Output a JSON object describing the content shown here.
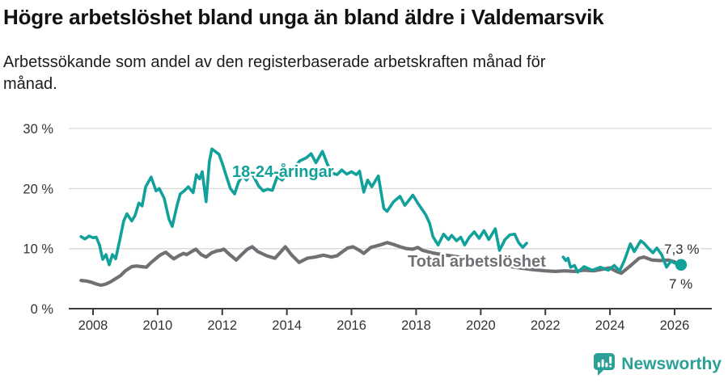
{
  "header": {
    "title": "Högre arbetslöshet bland unga än bland äldre i Valdemarsvik",
    "subtitle": "Arbetssökande som andel av den registerbaserade arbetskraften månad för\nmånad."
  },
  "footer": {
    "brand": "Newsworthy",
    "logo_icon": "newsworthy-speech-bubble-bar-chart"
  },
  "colors": {
    "young_line": "#12a19a",
    "total_line": "#707074",
    "title_text": "#111111",
    "axis_text": "#333333",
    "axis_line": "#3a3a3a",
    "gridline": "#dadada",
    "end_label_text": "#2b2b2b",
    "brand_teal": "#2aa096"
  },
  "chart_data": {
    "type": "line",
    "title": "Högre arbetslöshet bland unga än bland äldre i Valdemarsvik",
    "subtitle": "Arbetssökande som andel av den registerbaserade arbetskraften månad för månad.",
    "unit": "%",
    "grid": true,
    "x_axis": {
      "ticks": [
        2008,
        2010,
        2012,
        2014,
        2016,
        2018,
        2020,
        2022,
        2024,
        2026
      ],
      "tick_labels": [
        "2008",
        "2010",
        "2012",
        "2014",
        "2016",
        "2018",
        "2020",
        "2022",
        "2024",
        "2026"
      ],
      "range": [
        2007.2,
        2027.1
      ]
    },
    "y_axis": {
      "ticks": [
        0,
        10,
        20,
        30
      ],
      "tick_labels": [
        "0 %",
        "10 %",
        "20 %",
        "30 %"
      ],
      "range": [
        0,
        31.7
      ]
    },
    "annotations": {
      "young_label": "18-24-åringar",
      "total_label": "Total arbetslöshet",
      "young_end_label": "7,3 %",
      "total_end_label": "7 %"
    },
    "series": [
      {
        "name": "Total arbetslöshet",
        "color": "#707074",
        "end_value": 7.0,
        "segments": [
          [
            [
              2007.63,
              4.7
            ],
            [
              2007.8,
              4.6
            ],
            [
              2007.95,
              4.4
            ],
            [
              2008.1,
              4.1
            ],
            [
              2008.25,
              3.9
            ],
            [
              2008.4,
              4.1
            ],
            [
              2008.55,
              4.5
            ],
            [
              2008.7,
              5.0
            ],
            [
              2008.85,
              5.5
            ],
            [
              2009.0,
              6.3
            ],
            [
              2009.2,
              7.0
            ],
            [
              2009.35,
              7.1
            ],
            [
              2009.5,
              7.0
            ],
            [
              2009.65,
              6.9
            ],
            [
              2009.8,
              7.7
            ],
            [
              2010.0,
              8.6
            ],
            [
              2010.1,
              9.0
            ],
            [
              2010.25,
              9.4
            ],
            [
              2010.4,
              8.7
            ],
            [
              2010.5,
              8.3
            ],
            [
              2010.65,
              8.8
            ],
            [
              2010.8,
              9.2
            ],
            [
              2010.9,
              9.0
            ],
            [
              2011.05,
              9.5
            ],
            [
              2011.18,
              9.9
            ],
            [
              2011.35,
              9.0
            ],
            [
              2011.5,
              8.6
            ],
            [
              2011.67,
              9.3
            ],
            [
              2011.83,
              9.6
            ],
            [
              2011.95,
              9.7
            ],
            [
              2012.05,
              9.9
            ],
            [
              2012.25,
              8.9
            ],
            [
              2012.43,
              8.1
            ],
            [
              2012.6,
              9.0
            ],
            [
              2012.78,
              9.9
            ],
            [
              2012.93,
              10.3
            ],
            [
              2013.1,
              9.5
            ],
            [
              2013.38,
              8.8
            ],
            [
              2013.63,
              8.4
            ],
            [
              2013.8,
              9.4
            ],
            [
              2013.95,
              10.3
            ],
            [
              2014.15,
              8.9
            ],
            [
              2014.38,
              7.7
            ],
            [
              2014.63,
              8.4
            ],
            [
              2014.88,
              8.6
            ],
            [
              2015.13,
              8.9
            ],
            [
              2015.38,
              8.6
            ],
            [
              2015.55,
              8.8
            ],
            [
              2015.7,
              9.4
            ],
            [
              2015.88,
              10.1
            ],
            [
              2016.05,
              10.3
            ],
            [
              2016.25,
              9.7
            ],
            [
              2016.38,
              9.2
            ],
            [
              2016.6,
              10.2
            ],
            [
              2016.88,
              10.6
            ],
            [
              2017.1,
              11.0
            ],
            [
              2017.3,
              10.7
            ],
            [
              2017.5,
              10.3
            ],
            [
              2017.7,
              10.0
            ],
            [
              2017.9,
              9.9
            ],
            [
              2018.05,
              10.2
            ],
            [
              2018.2,
              9.7
            ],
            [
              2018.5,
              9.3
            ],
            [
              2018.8,
              9.0
            ],
            [
              2019.2,
              8.7
            ],
            [
              2019.6,
              8.4
            ],
            [
              2020.0,
              8.0
            ],
            [
              2020.4,
              7.5
            ],
            [
              2020.8,
              7.1
            ],
            [
              2021.2,
              6.8
            ],
            [
              2021.6,
              6.5
            ],
            [
              2022.0,
              6.3
            ],
            [
              2022.3,
              6.2
            ],
            [
              2022.6,
              6.3
            ],
            [
              2022.9,
              6.2
            ],
            [
              2023.2,
              6.4
            ],
            [
              2023.5,
              6.3
            ],
            [
              2023.8,
              6.6
            ],
            [
              2024.0,
              6.8
            ],
            [
              2024.2,
              6.2
            ],
            [
              2024.35,
              5.9
            ],
            [
              2024.6,
              7.0
            ],
            [
              2024.9,
              8.4
            ],
            [
              2025.05,
              8.6
            ],
            [
              2025.3,
              8.1
            ],
            [
              2025.55,
              8.0
            ],
            [
              2025.8,
              8.1
            ],
            [
              2026.0,
              7.8
            ],
            [
              2026.2,
              7.0
            ]
          ]
        ]
      },
      {
        "name": "18-24-åringar",
        "color": "#12a19a",
        "end_value": 7.3,
        "end_dot": true,
        "segments": [
          [
            [
              2007.63,
              12.0
            ],
            [
              2007.75,
              11.6
            ],
            [
              2007.88,
              12.1
            ],
            [
              2008.0,
              11.8
            ],
            [
              2008.1,
              11.9
            ],
            [
              2008.2,
              10.6
            ],
            [
              2008.3,
              8.2
            ],
            [
              2008.4,
              9.0
            ],
            [
              2008.5,
              7.3
            ],
            [
              2008.6,
              9.0
            ],
            [
              2008.7,
              8.3
            ],
            [
              2008.83,
              11.5
            ],
            [
              2008.95,
              14.6
            ],
            [
              2009.05,
              15.8
            ],
            [
              2009.2,
              14.6
            ],
            [
              2009.3,
              15.5
            ],
            [
              2009.42,
              17.6
            ],
            [
              2009.52,
              17.1
            ],
            [
              2009.63,
              20.3
            ],
            [
              2009.8,
              21.9
            ],
            [
              2009.95,
              19.6
            ],
            [
              2010.05,
              20.0
            ],
            [
              2010.2,
              18.4
            ],
            [
              2010.35,
              14.9
            ],
            [
              2010.45,
              13.7
            ],
            [
              2010.6,
              17.2
            ],
            [
              2010.7,
              19.1
            ],
            [
              2010.82,
              19.6
            ],
            [
              2010.95,
              20.3
            ],
            [
              2011.1,
              19.3
            ],
            [
              2011.2,
              22.3
            ],
            [
              2011.3,
              21.6
            ],
            [
              2011.38,
              22.8
            ],
            [
              2011.5,
              17.8
            ],
            [
              2011.6,
              24.5
            ],
            [
              2011.68,
              26.6
            ],
            [
              2011.8,
              26.1
            ],
            [
              2011.9,
              25.7
            ],
            [
              2012.0,
              24.2
            ],
            [
              2012.1,
              22.5
            ],
            [
              2012.25,
              20.0
            ],
            [
              2012.38,
              19.1
            ],
            [
              2012.5,
              21.0
            ],
            [
              2012.63,
              22.2
            ],
            [
              2012.75,
              21.4
            ],
            [
              2012.9,
              22.7
            ],
            [
              2013.0,
              21.7
            ],
            [
              2013.13,
              20.4
            ],
            [
              2013.27,
              19.6
            ],
            [
              2013.4,
              19.9
            ],
            [
              2013.55,
              19.7
            ],
            [
              2013.7,
              22.0
            ],
            [
              2013.85,
              21.4
            ],
            [
              2014.0,
              22.4
            ],
            [
              2014.2,
              23.4
            ],
            [
              2014.4,
              24.6
            ],
            [
              2014.6,
              25.1
            ],
            [
              2014.75,
              25.8
            ],
            [
              2014.9,
              24.3
            ],
            [
              2015.1,
              26.2
            ],
            [
              2015.25,
              24.1
            ],
            [
              2015.4,
              22.6
            ],
            [
              2015.55,
              22.3
            ],
            [
              2015.7,
              23.1
            ],
            [
              2015.85,
              22.4
            ],
            [
              2016.0,
              22.8
            ],
            [
              2016.15,
              22.3
            ],
            [
              2016.25,
              22.9
            ],
            [
              2016.38,
              19.4
            ],
            [
              2016.5,
              21.4
            ],
            [
              2016.63,
              20.3
            ],
            [
              2016.83,
              22.1
            ],
            [
              2017.0,
              16.7
            ],
            [
              2017.1,
              16.2
            ],
            [
              2017.3,
              17.8
            ],
            [
              2017.5,
              18.7
            ],
            [
              2017.65,
              17.2
            ],
            [
              2017.9,
              18.9
            ],
            [
              2018.05,
              17.6
            ],
            [
              2018.3,
              15.6
            ],
            [
              2018.42,
              14.2
            ],
            [
              2018.52,
              12.0
            ],
            [
              2018.68,
              10.6
            ],
            [
              2018.85,
              12.4
            ],
            [
              2019.0,
              11.5
            ],
            [
              2019.1,
              12.2
            ],
            [
              2019.25,
              11.3
            ],
            [
              2019.38,
              11.9
            ],
            [
              2019.5,
              10.6
            ],
            [
              2019.65,
              11.9
            ],
            [
              2019.8,
              12.8
            ],
            [
              2019.95,
              11.7
            ],
            [
              2020.1,
              13.0
            ],
            [
              2020.25,
              11.5
            ],
            [
              2020.45,
              13.3
            ],
            [
              2020.58,
              9.7
            ],
            [
              2020.75,
              11.5
            ],
            [
              2020.9,
              12.3
            ],
            [
              2021.05,
              12.4
            ],
            [
              2021.17,
              11.0
            ],
            [
              2021.3,
              10.2
            ],
            [
              2021.42,
              10.9
            ]
          ],
          [
            [
              2022.55,
              8.6
            ],
            [
              2022.63,
              8.0
            ],
            [
              2022.7,
              8.4
            ],
            [
              2022.78,
              6.9
            ],
            [
              2022.9,
              7.2
            ],
            [
              2023.0,
              6.1
            ],
            [
              2023.2,
              7.0
            ],
            [
              2023.45,
              6.4
            ],
            [
              2023.7,
              6.9
            ],
            [
              2023.95,
              6.4
            ],
            [
              2024.13,
              7.2
            ],
            [
              2024.3,
              6.3
            ],
            [
              2024.45,
              8.1
            ],
            [
              2024.63,
              10.8
            ],
            [
              2024.75,
              9.5
            ],
            [
              2024.95,
              11.3
            ],
            [
              2025.05,
              10.9
            ],
            [
              2025.2,
              10.0
            ],
            [
              2025.33,
              9.3
            ],
            [
              2025.45,
              10.1
            ],
            [
              2025.6,
              9.0
            ],
            [
              2025.75,
              6.9
            ],
            [
              2025.88,
              7.9
            ],
            [
              2026.0,
              7.6
            ],
            [
              2026.2,
              7.3
            ]
          ]
        ]
      }
    ]
  }
}
